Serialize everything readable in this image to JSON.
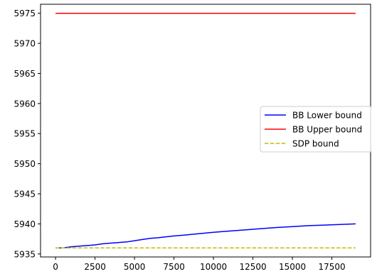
{
  "chart_data": {
    "type": "line",
    "title": "",
    "xlabel": "",
    "ylabel": "",
    "xlim": [
      -950,
      19950
    ],
    "ylim": [
      5934.5,
      5976.5
    ],
    "x_ticks": [
      0,
      2500,
      5000,
      7500,
      10000,
      12500,
      15000,
      17500
    ],
    "y_ticks": [
      5935,
      5940,
      5945,
      5950,
      5955,
      5960,
      5965,
      5970,
      5975
    ],
    "x_tick_labels": [
      "0",
      "2500",
      "5000",
      "7500",
      "10000",
      "12500",
      "15000",
      "17500"
    ],
    "y_tick_labels": [
      "5935",
      "5940",
      "5945",
      "5950",
      "5955",
      "5960",
      "5965",
      "5970",
      "5975"
    ],
    "grid": false,
    "legend": {
      "placement": "center-right",
      "show": true
    },
    "series": [
      {
        "name": "BB Lower bound",
        "color": "#0000ff",
        "style": "solid",
        "x": [
          0,
          500,
          1000,
          1500,
          2000,
          2500,
          3000,
          3500,
          4000,
          4500,
          5000,
          5500,
          6000,
          6500,
          7000,
          7500,
          8000,
          9000,
          10000,
          11000,
          12000,
          13000,
          14000,
          15000,
          16000,
          17000,
          18000,
          19000
        ],
        "values": [
          5936.0,
          5936.0,
          5936.2,
          5936.3,
          5936.4,
          5936.5,
          5936.7,
          5936.8,
          5936.9,
          5937.0,
          5937.2,
          5937.4,
          5937.6,
          5937.7,
          5937.85,
          5938.0,
          5938.1,
          5938.35,
          5938.6,
          5938.8,
          5939.0,
          5939.2,
          5939.4,
          5939.55,
          5939.7,
          5939.8,
          5939.9,
          5940.0
        ]
      },
      {
        "name": "BB Upper bound",
        "color": "#ff0000",
        "style": "solid",
        "x": [
          0,
          19000
        ],
        "values": [
          5975.0,
          5975.0
        ]
      },
      {
        "name": "SDP bound",
        "color": "#bfbf00",
        "style": "dashed",
        "x": [
          0,
          19000
        ],
        "values": [
          5936.0,
          5936.0
        ]
      }
    ]
  }
}
